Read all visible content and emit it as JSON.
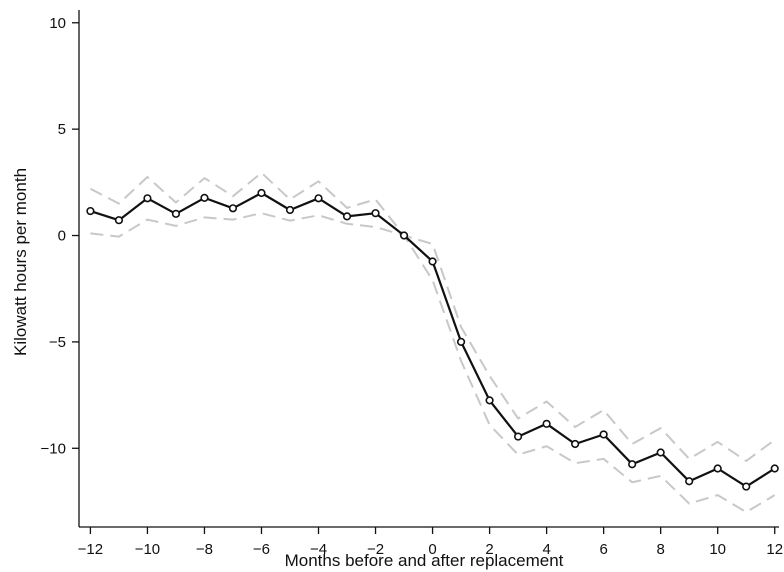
{
  "chart_data": {
    "type": "line",
    "title": "",
    "xlabel": "Months before and after replacement",
    "ylabel": "Kilowatt hours per month",
    "xlim": [
      -12.4,
      12.15
    ],
    "ylim": [
      -13.7,
      10.6
    ],
    "x_ticks": [
      -12,
      -10,
      -8,
      -6,
      -4,
      -2,
      0,
      2,
      4,
      6,
      8,
      10,
      12
    ],
    "x_tick_labels": [
      "−12",
      "−10",
      "−8",
      "−6",
      "−4",
      "−2",
      "0",
      "2",
      "4",
      "6",
      "8",
      "10",
      "12"
    ],
    "y_ticks": [
      10,
      5,
      0,
      -5,
      -10
    ],
    "y_tick_labels": [
      "10",
      "5",
      "0",
      "−5",
      "−10"
    ],
    "grid": false,
    "x": [
      -12,
      -11,
      -10,
      -9,
      -8,
      -7,
      -6,
      -5,
      -4,
      -3,
      -2,
      -1,
      0,
      1,
      2,
      3,
      4,
      5,
      6,
      7,
      8,
      9,
      10,
      11,
      12
    ],
    "series": [
      {
        "role": "estimate",
        "color": "#111111",
        "markers": true,
        "values": [
          1.15,
          0.72,
          1.75,
          1.02,
          1.77,
          1.28,
          2.0,
          1.2,
          1.75,
          0.9,
          1.05,
          0.0,
          -1.22,
          -5.0,
          -7.75,
          -9.45,
          -8.85,
          -9.8,
          -9.35,
          -10.75,
          -10.2,
          -11.55,
          -10.95,
          -11.8,
          -10.95
        ]
      },
      {
        "role": "upper-bound",
        "color": "#c8c8c8",
        "dashed": true,
        "values": [
          2.2,
          1.5,
          2.75,
          1.55,
          2.7,
          1.85,
          2.95,
          1.7,
          2.55,
          1.3,
          1.7,
          0.0,
          -0.4,
          -4.3,
          -6.6,
          -8.6,
          -7.8,
          -9.0,
          -8.2,
          -9.8,
          -9.05,
          -10.5,
          -9.7,
          -10.6,
          -9.6
        ]
      },
      {
        "role": "lower-bound",
        "color": "#c8c8c8",
        "dashed": true,
        "values": [
          0.1,
          -0.05,
          0.75,
          0.45,
          0.85,
          0.75,
          1.05,
          0.7,
          0.95,
          0.55,
          0.4,
          0.0,
          -2.1,
          -5.9,
          -8.9,
          -10.3,
          -9.9,
          -10.7,
          -10.5,
          -11.6,
          -11.3,
          -12.6,
          -12.2,
          -13.0,
          -12.2
        ]
      }
    ]
  }
}
